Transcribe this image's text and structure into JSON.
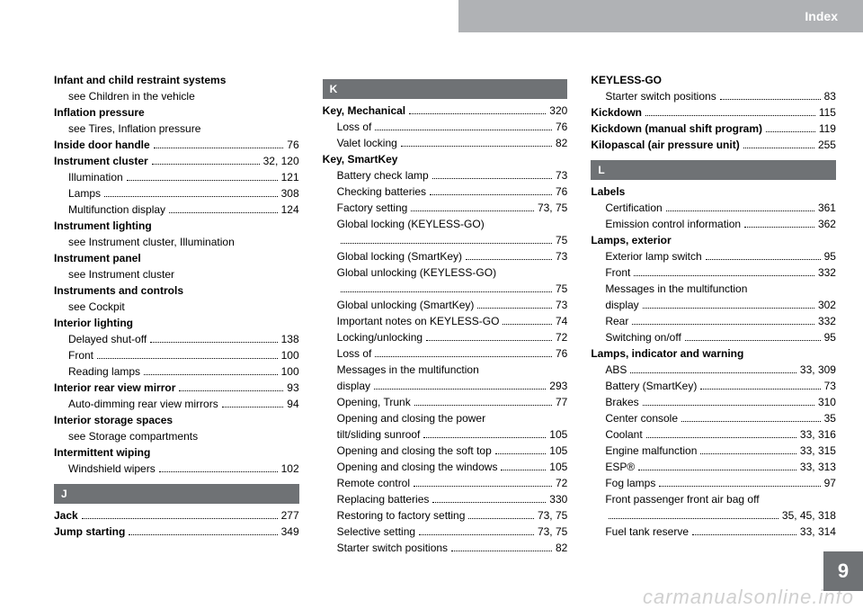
{
  "header": {
    "title": "Index"
  },
  "page_number": "9",
  "watermark": "carmanualsonline.info",
  "columns": [
    [
      {
        "type": "heading",
        "label": "Infant and child restraint systems"
      },
      {
        "type": "see",
        "label": "see Children in the vehicle"
      },
      {
        "type": "heading",
        "label": "Inflation pressure"
      },
      {
        "type": "see",
        "label": "see Tires, Inflation pressure"
      },
      {
        "type": "main",
        "label": "Inside door handle",
        "page": "76"
      },
      {
        "type": "main",
        "label": "Instrument cluster",
        "page": "32, 120"
      },
      {
        "type": "sub",
        "label": "Illumination",
        "page": "121"
      },
      {
        "type": "sub",
        "label": "Lamps",
        "page": "308"
      },
      {
        "type": "sub",
        "label": "Multifunction display",
        "page": "124"
      },
      {
        "type": "heading",
        "label": "Instrument lighting"
      },
      {
        "type": "see",
        "label": "see Instrument cluster, Illumination"
      },
      {
        "type": "heading",
        "label": "Instrument panel"
      },
      {
        "type": "see",
        "label": "see Instrument cluster"
      },
      {
        "type": "heading",
        "label": "Instruments and controls"
      },
      {
        "type": "see",
        "label": "see Cockpit"
      },
      {
        "type": "heading",
        "label": "Interior lighting"
      },
      {
        "type": "sub",
        "label": "Delayed shut-off",
        "page": "138"
      },
      {
        "type": "sub",
        "label": "Front",
        "page": "100"
      },
      {
        "type": "sub",
        "label": "Reading lamps",
        "page": "100"
      },
      {
        "type": "main",
        "label": "Interior rear view mirror",
        "page": "93"
      },
      {
        "type": "sub",
        "label": "Auto-dimming rear view mirrors",
        "page": "94"
      },
      {
        "type": "heading",
        "label": "Interior storage spaces"
      },
      {
        "type": "see",
        "label": "see Storage compartments"
      },
      {
        "type": "heading",
        "label": "Intermittent wiping"
      },
      {
        "type": "sub",
        "label": "Windshield wipers",
        "page": "102"
      },
      {
        "type": "letter",
        "label": "J"
      },
      {
        "type": "main",
        "label": "Jack",
        "page": "277"
      },
      {
        "type": "main",
        "label": "Jump starting",
        "page": "349"
      }
    ],
    [
      {
        "type": "letter",
        "label": "K"
      },
      {
        "type": "main",
        "label": "Key, Mechanical",
        "page": "320"
      },
      {
        "type": "sub",
        "label": "Loss of",
        "page": "76"
      },
      {
        "type": "sub",
        "label": "Valet locking",
        "page": "82"
      },
      {
        "type": "heading",
        "label": "Key, SmartKey"
      },
      {
        "type": "sub",
        "label": "Battery check lamp",
        "page": "73"
      },
      {
        "type": "sub",
        "label": "Checking batteries",
        "page": "76"
      },
      {
        "type": "sub",
        "label": "Factory setting",
        "page": "73, 75"
      },
      {
        "type": "subtext",
        "label": "Global locking (KEYLESS-GO)"
      },
      {
        "type": "subcont",
        "label": "",
        "page": "75"
      },
      {
        "type": "sub",
        "label": "Global locking (SmartKey)",
        "page": "73"
      },
      {
        "type": "subtext",
        "label": "Global unlocking (KEYLESS-GO)"
      },
      {
        "type": "subcont",
        "label": "",
        "page": "75"
      },
      {
        "type": "sub",
        "label": "Global unlocking (SmartKey)",
        "page": "73"
      },
      {
        "type": "sub",
        "label": "Important notes on KEYLESS-GO",
        "page": "74"
      },
      {
        "type": "sub",
        "label": "Locking/unlocking",
        "page": "72"
      },
      {
        "type": "sub",
        "label": "Loss of",
        "page": "76"
      },
      {
        "type": "subtext",
        "label": "Messages in the multifunction"
      },
      {
        "type": "sub",
        "label": "display",
        "page": "293"
      },
      {
        "type": "sub",
        "label": "Opening, Trunk",
        "page": "77"
      },
      {
        "type": "subtext",
        "label": "Opening and closing the power"
      },
      {
        "type": "sub",
        "label": "tilt/sliding sunroof",
        "page": "105"
      },
      {
        "type": "sub",
        "label": "Opening and closing the soft top",
        "page": "105"
      },
      {
        "type": "sub",
        "label": "Opening and closing the windows",
        "page": "105"
      },
      {
        "type": "sub",
        "label": "Remote control",
        "page": "72"
      },
      {
        "type": "sub",
        "label": "Replacing batteries",
        "page": "330"
      },
      {
        "type": "sub",
        "label": "Restoring to factory setting",
        "page": "73, 75"
      },
      {
        "type": "sub",
        "label": "Selective setting",
        "page": "73, 75"
      },
      {
        "type": "sub",
        "label": "Starter switch positions",
        "page": "82"
      }
    ],
    [
      {
        "type": "heading",
        "label": "KEYLESS-GO"
      },
      {
        "type": "sub",
        "label": "Starter switch positions",
        "page": "83"
      },
      {
        "type": "main",
        "label": "Kickdown",
        "page": "115"
      },
      {
        "type": "main",
        "label": "Kickdown (manual shift program)",
        "page": "119"
      },
      {
        "type": "main",
        "label": "Kilopascal (air pressure unit)",
        "page": "255"
      },
      {
        "type": "letter",
        "label": "L"
      },
      {
        "type": "heading",
        "label": "Labels"
      },
      {
        "type": "sub",
        "label": "Certification",
        "page": "361"
      },
      {
        "type": "sub",
        "label": "Emission control information",
        "page": "362"
      },
      {
        "type": "heading",
        "label": "Lamps, exterior"
      },
      {
        "type": "sub",
        "label": "Exterior lamp switch",
        "page": "95"
      },
      {
        "type": "sub",
        "label": "Front",
        "page": "332"
      },
      {
        "type": "subtext",
        "label": "Messages in the multifunction"
      },
      {
        "type": "sub",
        "label": "display",
        "page": "302"
      },
      {
        "type": "sub",
        "label": "Rear",
        "page": "332"
      },
      {
        "type": "sub",
        "label": "Switching on/off",
        "page": "95"
      },
      {
        "type": "heading",
        "label": "Lamps, indicator and warning"
      },
      {
        "type": "sub",
        "label": "ABS",
        "page": "33, 309"
      },
      {
        "type": "sub",
        "label": "Battery (SmartKey)",
        "page": "73"
      },
      {
        "type": "sub",
        "label": "Brakes",
        "page": "310"
      },
      {
        "type": "sub",
        "label": "Center console",
        "page": "35"
      },
      {
        "type": "sub",
        "label": "Coolant",
        "page": "33, 316"
      },
      {
        "type": "sub",
        "label": "Engine malfunction",
        "page": "33, 315"
      },
      {
        "type": "sub",
        "label": "ESP®",
        "page": "33, 313"
      },
      {
        "type": "sub",
        "label": "Fog lamps",
        "page": "97"
      },
      {
        "type": "subtext",
        "label": "Front passenger front air bag off"
      },
      {
        "type": "subcont",
        "label": "",
        "page": "35, 45, 318"
      },
      {
        "type": "sub",
        "label": "Fuel tank reserve",
        "page": "33, 314"
      }
    ]
  ]
}
